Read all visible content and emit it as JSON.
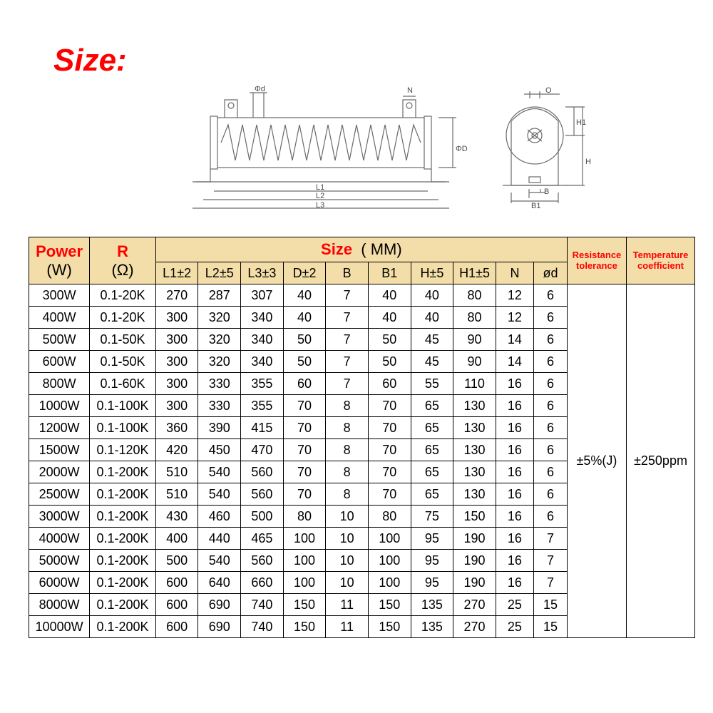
{
  "title": "Size:",
  "diagram_labels": {
    "phi_d": "Φd",
    "N": "N",
    "phi_D": "ΦD",
    "L1": "L1",
    "L2": "L2",
    "L3": "L3",
    "O": "O",
    "H1": "H1",
    "H": "H",
    "B": "B",
    "B1": "B1"
  },
  "headers": {
    "power": "Power",
    "power_unit": "(W)",
    "r": "R",
    "r_unit": "(Ω)",
    "size": "Size",
    "size_unit": "( MM)",
    "l1": "L1±2",
    "l2": "L2±5",
    "l3": "L3±3",
    "d": "D±2",
    "b": "B",
    "b1": "B1",
    "h": "H±5",
    "h1": "H1±5",
    "n": "N",
    "phi_d": "ød",
    "res_tol": "Resistance tolerance",
    "temp_coef": "Temperature coefficient"
  },
  "tolerance_value": "±5%(J)",
  "tempco_value": "±250ppm",
  "rows": [
    {
      "p": "300W",
      "r": "0.1-20K",
      "l1": "270",
      "l2": "287",
      "l3": "307",
      "d": "40",
      "b": "7",
      "b1": "40",
      "h": "40",
      "h1": "80",
      "n": "12",
      "pd": "6"
    },
    {
      "p": "400W",
      "r": "0.1-20K",
      "l1": "300",
      "l2": "320",
      "l3": "340",
      "d": "40",
      "b": "7",
      "b1": "40",
      "h": "40",
      "h1": "80",
      "n": "12",
      "pd": "6"
    },
    {
      "p": "500W",
      "r": "0.1-50K",
      "l1": "300",
      "l2": "320",
      "l3": "340",
      "d": "50",
      "b": "7",
      "b1": "50",
      "h": "45",
      "h1": "90",
      "n": "14",
      "pd": "6"
    },
    {
      "p": "600W",
      "r": "0.1-50K",
      "l1": "300",
      "l2": "320",
      "l3": "340",
      "d": "50",
      "b": "7",
      "b1": "50",
      "h": "45",
      "h1": "90",
      "n": "14",
      "pd": "6"
    },
    {
      "p": "800W",
      "r": "0.1-60K",
      "l1": "300",
      "l2": "330",
      "l3": "355",
      "d": "60",
      "b": "7",
      "b1": "60",
      "h": "55",
      "h1": "110",
      "n": "16",
      "pd": "6"
    },
    {
      "p": "1000W",
      "r": "0.1-100K",
      "l1": "300",
      "l2": "330",
      "l3": "355",
      "d": "70",
      "b": "8",
      "b1": "70",
      "h": "65",
      "h1": "130",
      "n": "16",
      "pd": "6"
    },
    {
      "p": "1200W",
      "r": "0.1-100K",
      "l1": "360",
      "l2": "390",
      "l3": "415",
      "d": "70",
      "b": "8",
      "b1": "70",
      "h": "65",
      "h1": "130",
      "n": "16",
      "pd": "6"
    },
    {
      "p": "1500W",
      "r": "0.1-120K",
      "l1": "420",
      "l2": "450",
      "l3": "470",
      "d": "70",
      "b": "8",
      "b1": "70",
      "h": "65",
      "h1": "130",
      "n": "16",
      "pd": "6"
    },
    {
      "p": "2000W",
      "r": "0.1-200K",
      "l1": "510",
      "l2": "540",
      "l3": "560",
      "d": "70",
      "b": "8",
      "b1": "70",
      "h": "65",
      "h1": "130",
      "n": "16",
      "pd": "6"
    },
    {
      "p": "2500W",
      "r": "0.1-200K",
      "l1": "510",
      "l2": "540",
      "l3": "560",
      "d": "70",
      "b": "8",
      "b1": "70",
      "h": "65",
      "h1": "130",
      "n": "16",
      "pd": "6"
    },
    {
      "p": "3000W",
      "r": "0.1-200K",
      "l1": "430",
      "l2": "460",
      "l3": "500",
      "d": "80",
      "b": "10",
      "b1": "80",
      "h": "75",
      "h1": "150",
      "n": "16",
      "pd": "6"
    },
    {
      "p": "4000W",
      "r": "0.1-200K",
      "l1": "400",
      "l2": "440",
      "l3": "465",
      "d": "100",
      "b": "10",
      "b1": "100",
      "h": "95",
      "h1": "190",
      "n": "16",
      "pd": "7"
    },
    {
      "p": "5000W",
      "r": "0.1-200K",
      "l1": "500",
      "l2": "540",
      "l3": "560",
      "d": "100",
      "b": "10",
      "b1": "100",
      "h": "95",
      "h1": "190",
      "n": "16",
      "pd": "7"
    },
    {
      "p": "6000W",
      "r": "0.1-200K",
      "l1": "600",
      "l2": "640",
      "l3": "660",
      "d": "100",
      "b": "10",
      "b1": "100",
      "h": "95",
      "h1": "190",
      "n": "16",
      "pd": "7"
    },
    {
      "p": "8000W",
      "r": "0.1-200K",
      "l1": "600",
      "l2": "690",
      "l3": "740",
      "d": "150",
      "b": "11",
      "b1": "150",
      "h": "135",
      "h1": "270",
      "n": "25",
      "pd": "15"
    },
    {
      "p": "10000W",
      "r": "0.1-200K",
      "l1": "600",
      "l2": "690",
      "l3": "740",
      "d": "150",
      "b": "11",
      "b1": "150",
      "h": "135",
      "h1": "270",
      "n": "25",
      "pd": "15"
    }
  ],
  "colors": {
    "header_bg": "#f3dea9",
    "border": "#000000",
    "red": "#ff0000",
    "text": "#000000",
    "diagram_stroke": "#6a6a6a"
  }
}
